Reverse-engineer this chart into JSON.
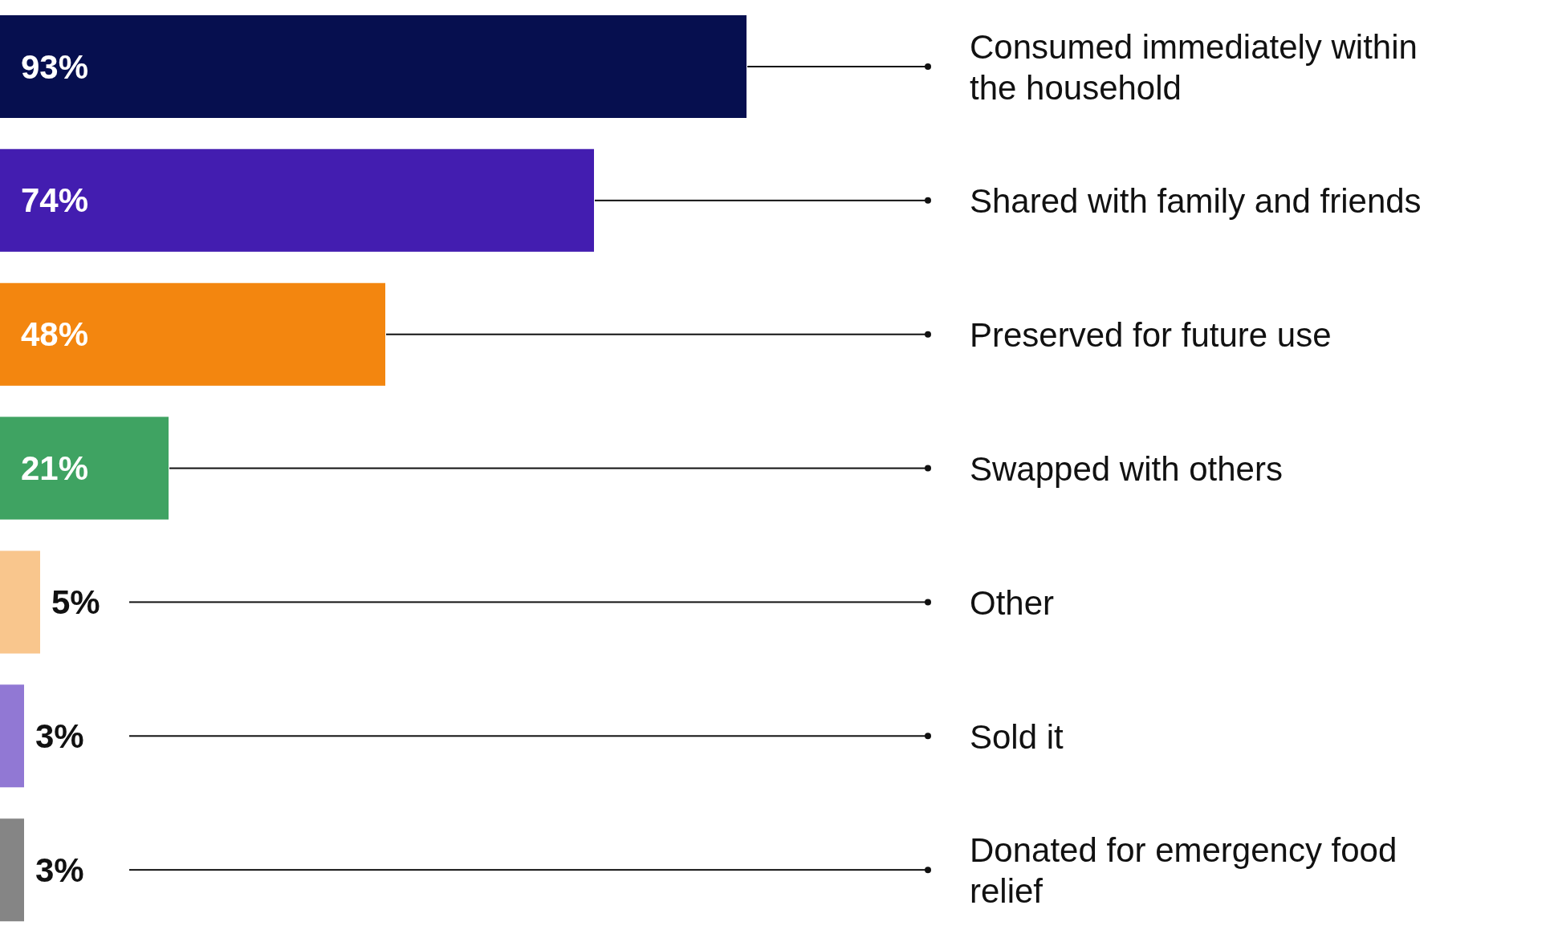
{
  "chart_data": {
    "type": "bar",
    "orientation": "horizontal",
    "categories": [
      "Consumed immediately within the household",
      "Shared with family and friends",
      "Preserved for future use",
      "Swapped with others",
      "Other",
      "Sold it",
      "Donated for emergency food relief"
    ],
    "values": [
      93,
      74,
      48,
      21,
      5,
      3,
      3
    ],
    "value_labels": [
      "93%",
      "74%",
      "48%",
      "21%",
      "5%",
      "3%",
      "3%"
    ],
    "colors": [
      "#060f4f",
      "#431db0",
      "#f3860f",
      "#3fa362",
      "#f9c68d",
      "#9178d4",
      "#858585"
    ],
    "grid": false,
    "legend": false
  }
}
